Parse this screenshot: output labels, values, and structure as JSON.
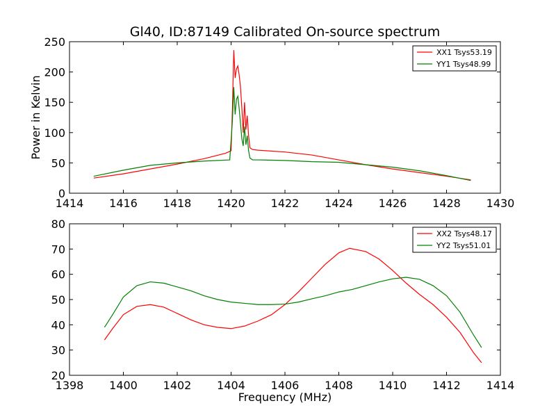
{
  "chart_data": [
    {
      "type": "line",
      "title": "Gl40, ID:87149 Calibrated On-source spectrum",
      "xlabel": "",
      "ylabel": "Power in Kelvin",
      "xlim": [
        1414,
        1430
      ],
      "ylim": [
        0,
        250
      ],
      "xticks": [
        "1414",
        "1416",
        "1418",
        "1420",
        "1422",
        "1424",
        "1426",
        "1428",
        "1430"
      ],
      "yticks": [
        "0",
        "50",
        "100",
        "150",
        "200",
        "250"
      ],
      "legend_position": "top-right",
      "series": [
        {
          "name": "XX1 Tsys53.19",
          "color": "#ff0000",
          "points": [
            [
              1414.9,
              25
            ],
            [
              1416,
              32
            ],
            [
              1417,
              40
            ],
            [
              1418,
              48
            ],
            [
              1419,
              57
            ],
            [
              1419.8,
              66
            ],
            [
              1420.0,
              70
            ],
            [
              1420.05,
              140
            ],
            [
              1420.1,
              236
            ],
            [
              1420.15,
              190
            ],
            [
              1420.2,
              205
            ],
            [
              1420.25,
              210
            ],
            [
              1420.3,
              195
            ],
            [
              1420.35,
              175
            ],
            [
              1420.4,
              140
            ],
            [
              1420.45,
              100
            ],
            [
              1420.5,
              150
            ],
            [
              1420.55,
              105
            ],
            [
              1420.6,
              128
            ],
            [
              1420.65,
              95
            ],
            [
              1420.7,
              75
            ],
            [
              1420.8,
              72
            ],
            [
              1421,
              71
            ],
            [
              1422,
              68
            ],
            [
              1423,
              63
            ],
            [
              1424,
              55
            ],
            [
              1425,
              47
            ],
            [
              1426,
              40
            ],
            [
              1427,
              34
            ],
            [
              1428,
              28
            ],
            [
              1428.9,
              22
            ]
          ]
        },
        {
          "name": "YY1 Tsys48.99",
          "color": "#008000",
          "points": [
            [
              1414.9,
              28
            ],
            [
              1416,
              38
            ],
            [
              1417,
              46
            ],
            [
              1418,
              50
            ],
            [
              1419,
              53
            ],
            [
              1419.95,
              55
            ],
            [
              1420.05,
              120
            ],
            [
              1420.1,
              175
            ],
            [
              1420.15,
              130
            ],
            [
              1420.2,
              155
            ],
            [
              1420.25,
              160
            ],
            [
              1420.3,
              140
            ],
            [
              1420.35,
              115
            ],
            [
              1420.4,
              90
            ],
            [
              1420.45,
              78
            ],
            [
              1420.5,
              110
            ],
            [
              1420.55,
              80
            ],
            [
              1420.6,
              95
            ],
            [
              1420.65,
              70
            ],
            [
              1420.7,
              58
            ],
            [
              1420.8,
              55
            ],
            [
              1421,
              55
            ],
            [
              1422,
              54
            ],
            [
              1423,
              52
            ],
            [
              1424,
              51
            ],
            [
              1425,
              47
            ],
            [
              1426,
              43
            ],
            [
              1427,
              37
            ],
            [
              1428,
              29
            ],
            [
              1428.9,
              21
            ]
          ]
        }
      ]
    },
    {
      "type": "line",
      "title": "",
      "xlabel": "Frequency (MHz)",
      "ylabel": "",
      "xlim": [
        1398,
        1414
      ],
      "ylim": [
        20,
        80
      ],
      "xticks": [
        "1398",
        "1400",
        "1402",
        "1404",
        "1406",
        "1408",
        "1410",
        "1412",
        "1414"
      ],
      "yticks": [
        "20",
        "30",
        "40",
        "50",
        "60",
        "70",
        "80"
      ],
      "legend_position": "top-right",
      "series": [
        {
          "name": "XX2 Tsys48.17",
          "color": "#ff0000",
          "points": [
            [
              1399.3,
              34
            ],
            [
              1399.6,
              38.5
            ],
            [
              1400,
              44
            ],
            [
              1400.5,
              47.3
            ],
            [
              1401,
              48
            ],
            [
              1401.5,
              47
            ],
            [
              1402,
              44.5
            ],
            [
              1402.5,
              42
            ],
            [
              1403,
              40
            ],
            [
              1403.5,
              39
            ],
            [
              1404,
              38.5
            ],
            [
              1404.5,
              39.5
            ],
            [
              1405,
              41.5
            ],
            [
              1405.5,
              44
            ],
            [
              1406,
              48
            ],
            [
              1406.5,
              53
            ],
            [
              1407,
              58.5
            ],
            [
              1407.5,
              64
            ],
            [
              1408,
              68.5
            ],
            [
              1408.4,
              70.3
            ],
            [
              1409,
              69
            ],
            [
              1409.5,
              66
            ],
            [
              1410,
              61.5
            ],
            [
              1410.5,
              56.5
            ],
            [
              1411,
              52
            ],
            [
              1411.5,
              48
            ],
            [
              1412,
              43
            ],
            [
              1412.5,
              37
            ],
            [
              1413,
              29
            ],
            [
              1413.3,
              25
            ]
          ]
        },
        {
          "name": "YY2 Tsys51.01",
          "color": "#008000",
          "points": [
            [
              1399.3,
              39
            ],
            [
              1399.6,
              44
            ],
            [
              1400,
              51
            ],
            [
              1400.5,
              55.5
            ],
            [
              1401,
              57
            ],
            [
              1401.5,
              56.5
            ],
            [
              1402,
              55
            ],
            [
              1402.5,
              53.5
            ],
            [
              1403,
              51.5
            ],
            [
              1403.5,
              50
            ],
            [
              1404,
              49
            ],
            [
              1404.5,
              48.5
            ],
            [
              1405,
              48
            ],
            [
              1405.5,
              48
            ],
            [
              1406,
              48.2
            ],
            [
              1406.5,
              49
            ],
            [
              1407,
              50.3
            ],
            [
              1407.5,
              51.5
            ],
            [
              1408,
              53
            ],
            [
              1408.5,
              54
            ],
            [
              1409,
              55.5
            ],
            [
              1409.5,
              57
            ],
            [
              1410,
              58.2
            ],
            [
              1410.5,
              58.8
            ],
            [
              1411,
              58
            ],
            [
              1411.5,
              55.5
            ],
            [
              1412,
              51.5
            ],
            [
              1412.5,
              45
            ],
            [
              1413,
              36
            ],
            [
              1413.3,
              31
            ]
          ]
        }
      ]
    }
  ]
}
